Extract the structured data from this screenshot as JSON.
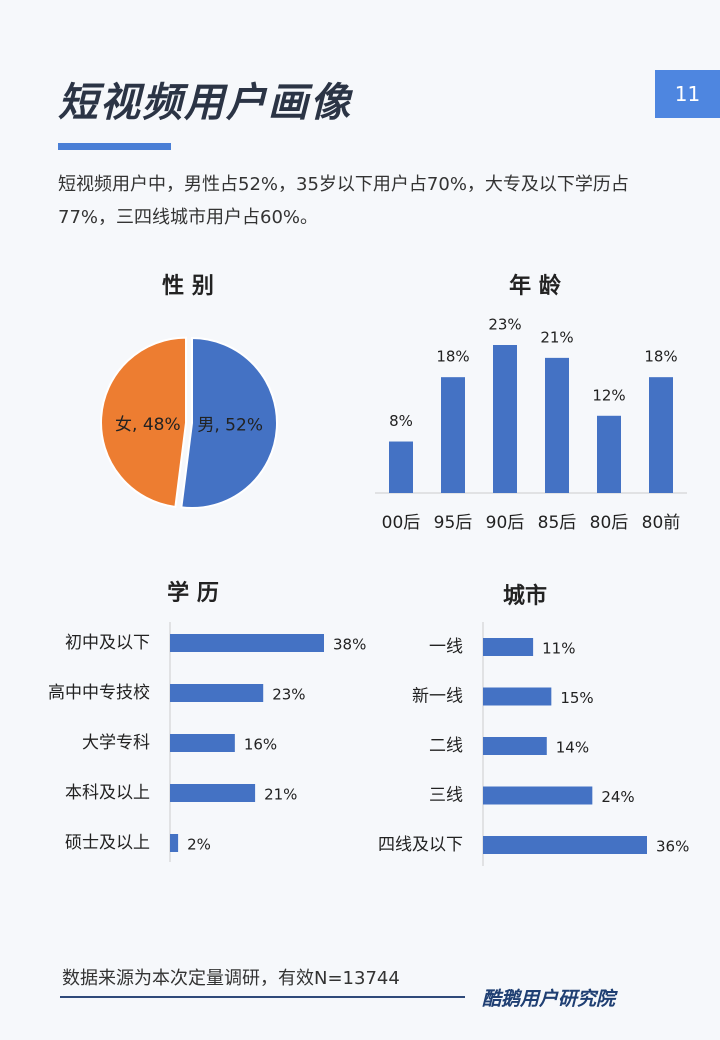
{
  "title": "短视频用户画像",
  "page_number": "11",
  "summary": "短视频用户中，男性占52%，35岁以下用户占70%，大专及以下学历占77%，三四线城市用户占60%。",
  "chart_data": [
    {
      "type": "pie",
      "title": "性 别",
      "categories": [
        "男",
        "女"
      ],
      "values": [
        52,
        48
      ],
      "value_labels": [
        "男, 52%",
        "女, 48%"
      ],
      "colors": [
        "#4472c4",
        "#ed7d31"
      ]
    },
    {
      "type": "bar",
      "title": "年 龄",
      "categories": [
        "00后",
        "95后",
        "90后",
        "85后",
        "80后",
        "80前"
      ],
      "values": [
        8,
        18,
        23,
        21,
        12,
        18
      ],
      "value_labels": [
        "8%",
        "18%",
        "23%",
        "21%",
        "12%",
        "18%"
      ],
      "color": "#4472c4"
    },
    {
      "type": "hbar",
      "title": "学 历",
      "categories": [
        "初中及以下",
        "高中中专技校",
        "大学专科",
        "本科及以上",
        "硕士及以上"
      ],
      "values": [
        38,
        23,
        16,
        21,
        2
      ],
      "value_labels": [
        "38%",
        "23%",
        "16%",
        "21%",
        "2%"
      ],
      "color": "#4472c4"
    },
    {
      "type": "hbar",
      "title": "城市",
      "categories": [
        "一线",
        "新一线",
        "二线",
        "三线",
        "四线及以下"
      ],
      "values": [
        11,
        15,
        14,
        24,
        36
      ],
      "value_labels": [
        "11%",
        "15%",
        "14%",
        "24%",
        "36%"
      ],
      "color": "#4472c4"
    }
  ],
  "footer": {
    "source": "数据来源为本次定量调研，有效N=13744",
    "logo": "酷鹅用户研究院"
  }
}
